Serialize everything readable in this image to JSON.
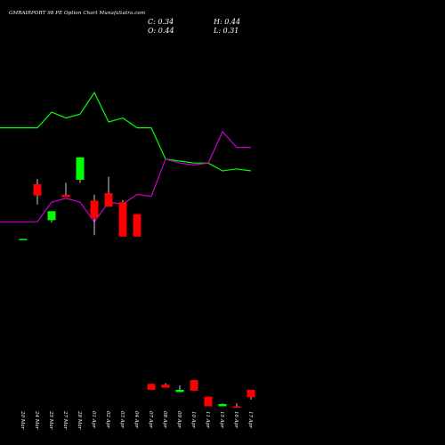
{
  "header": {
    "title": "GMRAIRPORT 98 PE Option Chart MunafaSutra.com",
    "close": "C: 0.34",
    "open": "O: 0.44",
    "high": "H: 0.44",
    "low": "L: 0.31"
  },
  "colors": {
    "background": "#000000",
    "bull": "#00ff00",
    "bear": "#ff0000",
    "line_green": "#00ff00",
    "line_magenta": "#cc00cc",
    "wick": "#ffffff",
    "text": "#ffffff"
  },
  "chart_data": {
    "type": "candlestick",
    "title": "GMRAIRPORT 98 PE Option Chart MunafaSutra.com",
    "categories": [
      "20 Mar",
      "24 Mar",
      "25 Mar",
      "27 Mar",
      "28 Mar",
      "01 Apr",
      "02 Apr",
      "03 Apr",
      "04 Apr",
      "07 Apr",
      "08 Apr",
      "09 Apr",
      "10 Apr",
      "11 Apr",
      "15 Apr",
      "16 Apr",
      "17 Apr"
    ],
    "candles": [
      {
        "date": "20 Mar",
        "open": 2.46,
        "high": 2.46,
        "low": 2.45,
        "close": 2.45,
        "color": "green"
      },
      {
        "date": "24 Mar",
        "open": 3.19,
        "high": 3.26,
        "low": 2.92,
        "close": 3.04,
        "color": "red"
      },
      {
        "date": "25 Mar",
        "open": 2.71,
        "high": 2.83,
        "low": 2.68,
        "close": 2.83,
        "color": "green"
      },
      {
        "date": "27 Mar",
        "open": 3.05,
        "high": 3.21,
        "low": 3.02,
        "close": 3.02,
        "color": "red"
      },
      {
        "date": "28 Mar",
        "open": 3.25,
        "high": 3.55,
        "low": 3.21,
        "close": 3.55,
        "color": "green"
      },
      {
        "date": "01 Apr",
        "open": 2.97,
        "high": 3.05,
        "low": 2.51,
        "close": 2.74,
        "color": "red"
      },
      {
        "date": "02 Apr",
        "open": 3.07,
        "high": 3.29,
        "low": 2.89,
        "close": 2.89,
        "color": "red"
      },
      {
        "date": "03 Apr",
        "open": 2.95,
        "high": 2.98,
        "low": 2.49,
        "close": 2.49,
        "color": "red"
      },
      {
        "date": "04 Apr",
        "open": 2.79,
        "high": 2.79,
        "low": 2.49,
        "close": 2.49,
        "color": "red"
      },
      {
        "date": "07 Apr",
        "open": 0.52,
        "high": 0.52,
        "low": 0.44,
        "close": 0.44,
        "color": "red"
      },
      {
        "date": "08 Apr",
        "open": 0.51,
        "high": 0.53,
        "low": 0.47,
        "close": 0.47,
        "color": "red"
      },
      {
        "date": "09 Apr",
        "open": 0.41,
        "high": 0.5,
        "low": 0.41,
        "close": 0.44,
        "color": "green"
      },
      {
        "date": "10 Apr",
        "open": 0.57,
        "high": 0.57,
        "low": 0.43,
        "close": 0.43,
        "color": "red"
      },
      {
        "date": "11 Apr",
        "open": 0.35,
        "high": 0.35,
        "low": 0.22,
        "close": 0.22,
        "color": "red"
      },
      {
        "date": "15 Apr",
        "open": 0.22,
        "high": 0.26,
        "low": 0.22,
        "close": 0.25,
        "color": "green"
      },
      {
        "date": "16 Apr",
        "open": 0.22,
        "high": 0.26,
        "low": 0.22,
        "close": 0.22,
        "color": "red"
      },
      {
        "date": "17 Apr",
        "open": 0.44,
        "high": 0.44,
        "low": 0.31,
        "close": 0.34,
        "color": "red"
      }
    ],
    "series": [
      {
        "values": [
          0.6,
          0.6,
          1.0,
          0.85,
          0.95,
          1.5,
          0.75,
          0.85,
          0.6,
          0.6,
          -0.2,
          -0.25,
          -0.3,
          -0.3,
          -0.5,
          -0.45,
          -0.5
        ],
        "color": "#00ff00"
      },
      {
        "values": [
          -1.8,
          -1.8,
          -1.3,
          -1.2,
          -1.3,
          -1.8,
          -1.3,
          -1.35,
          -1.1,
          -1.15,
          -0.2,
          -0.3,
          -0.35,
          -0.3,
          0.5,
          0.1,
          0.1
        ],
        "color": "#cc00cc"
      }
    ]
  }
}
